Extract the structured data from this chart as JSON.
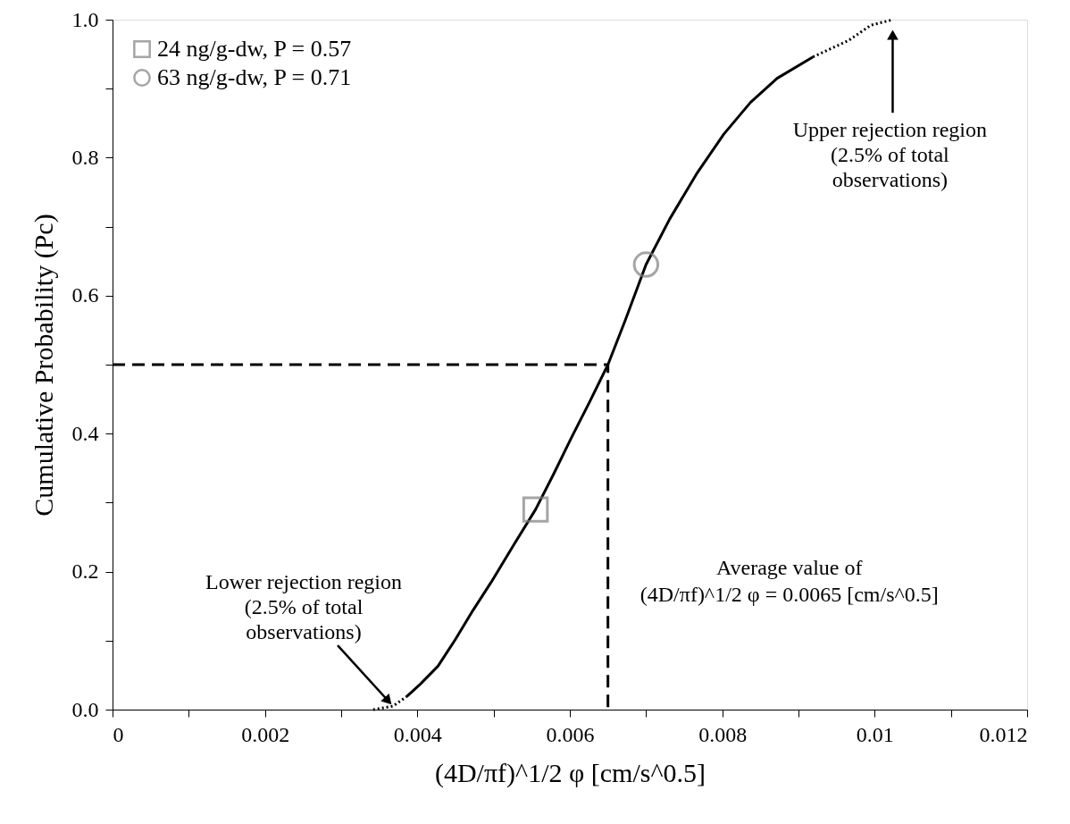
{
  "chart_data": {
    "type": "line",
    "xlabel": "(4D/πf)^1/2 φ [cm/s^0.5]",
    "ylabel": "Cumulative Probability (Pc)",
    "xlim": [
      0,
      0.012
    ],
    "ylim": [
      0,
      1.0
    ],
    "xticks": [
      {
        "value": 0,
        "label": "0"
      },
      {
        "value": 0.001,
        "label": null
      },
      {
        "value": 0.002,
        "label": "0.002"
      },
      {
        "value": 0.003,
        "label": null
      },
      {
        "value": 0.004,
        "label": "0.004"
      },
      {
        "value": 0.005,
        "label": null
      },
      {
        "value": 0.006,
        "label": "0.006"
      },
      {
        "value": 0.007,
        "label": null
      },
      {
        "value": 0.008,
        "label": "0.008"
      },
      {
        "value": 0.009,
        "label": null
      },
      {
        "value": 0.01,
        "label": "0.01"
      },
      {
        "value": 0.011,
        "label": null
      },
      {
        "value": 0.012,
        "label": "0.012"
      }
    ],
    "yticks": [
      {
        "value": 0,
        "label": "0.0"
      },
      {
        "value": 0.1,
        "label": null
      },
      {
        "value": 0.2,
        "label": "0.2"
      },
      {
        "value": 0.3,
        "label": null
      },
      {
        "value": 0.4,
        "label": "0.4"
      },
      {
        "value": 0.5,
        "label": null
      },
      {
        "value": 0.6,
        "label": "0.6"
      },
      {
        "value": 0.7,
        "label": null
      },
      {
        "value": 0.8,
        "label": "0.8"
      },
      {
        "value": 0.9,
        "label": null
      },
      {
        "value": 1.0,
        "label": "1.0"
      }
    ],
    "grid": false,
    "legend": "top left",
    "series": [
      {
        "type": "line",
        "line_style": "dotted",
        "color": "#000000",
        "x": [
          0.00342,
          0.00368,
          0.00386
        ],
        "values": [
          0,
          0.005,
          0.019
        ]
      },
      {
        "type": "line",
        "line_style": "solid",
        "color": "#000000",
        "x": [
          0.00386,
          0.00403,
          0.00427,
          0.0045,
          0.00473,
          0.00497,
          0.00526,
          0.00555,
          0.00579,
          0.00602,
          0.00626,
          0.0065,
          0.00673,
          0.007,
          0.00731,
          0.00766,
          0.00802,
          0.00837,
          0.00872,
          0.00919
        ],
        "values": [
          0.019,
          0.036,
          0.063,
          0.102,
          0.144,
          0.185,
          0.238,
          0.29,
          0.342,
          0.394,
          0.446,
          0.5,
          0.565,
          0.645,
          0.711,
          0.776,
          0.834,
          0.88,
          0.915,
          0.946
        ]
      },
      {
        "type": "line",
        "line_style": "dotted",
        "color": "#000000",
        "x": [
          0.00919,
          0.00966,
          0.00995,
          0.01024
        ],
        "values": [
          0.946,
          0.97,
          0.992,
          1.0
        ]
      },
      {
        "type": "line",
        "line_style": "dashed",
        "color": "#000000",
        "x": [
          0,
          0.0065,
          0.0065
        ],
        "values": [
          0.5,
          0.5,
          0
        ]
      },
      {
        "type": "scatter",
        "name": "24 ng/g-dw, P = 0.57",
        "marker": "square",
        "color": "#808080",
        "x": [
          0.00555
        ],
        "values": [
          0.29
        ]
      },
      {
        "type": "scatter",
        "name": "63 ng/g-dw, P = 0.71",
        "marker": "circle",
        "color": "#808080",
        "x": [
          0.007
        ],
        "values": [
          0.645
        ]
      }
    ],
    "annotations": [
      {
        "text": "Lower rejection region\n(2.5% of total\nobservations)",
        "x": 0.00368,
        "y": 0.005
      },
      "Upper rejection region\n(2.5% of total\nobservations)",
      "Average value of\n(4D/πf)^1/2 φ = 0.0065 [cm/s^0.5]"
    ]
  }
}
